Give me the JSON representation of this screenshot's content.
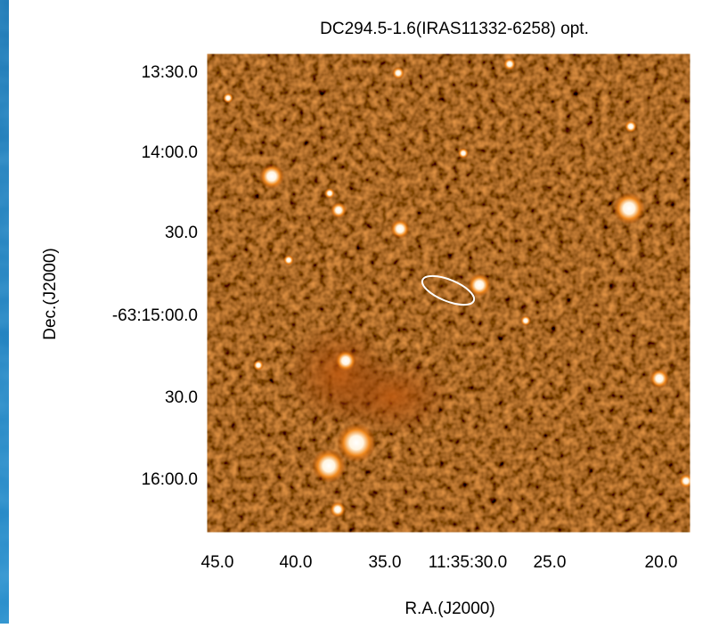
{
  "title": "DC294.5-1.6(IRAS11332-6258) opt.",
  "y_axis": {
    "label": "Dec.(J2000)",
    "ticks": [
      "13:30.0",
      "14:00.0",
      "30.0",
      "-63:15:00.0",
      "30.0",
      "16:00.0"
    ]
  },
  "x_axis": {
    "label": "R.A.(J2000)",
    "ticks": [
      "45.0",
      "40.0",
      "35.0",
      "11:35:30.0",
      "25.0",
      "20.0"
    ]
  }
}
